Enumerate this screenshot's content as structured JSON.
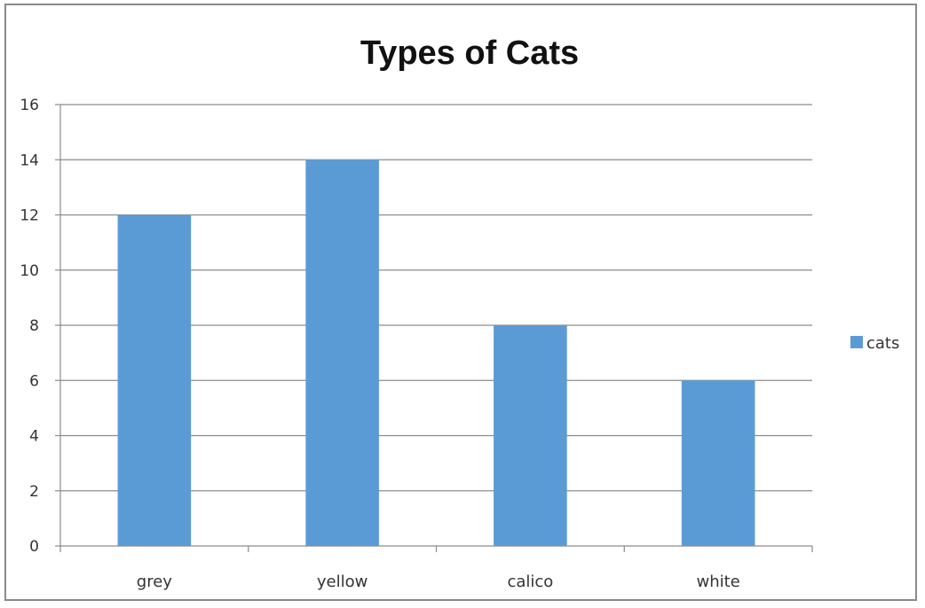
{
  "chart_data": {
    "type": "bar",
    "title": "Types of Cats",
    "xlabel": "",
    "ylabel": "",
    "categories": [
      "grey",
      "yellow",
      "calico",
      "white"
    ],
    "series": [
      {
        "name": "cats",
        "values": [
          12,
          14,
          8,
          6
        ],
        "color": "#5B9BD5"
      }
    ],
    "ylim": [
      0,
      16
    ],
    "yticks": [
      0,
      2,
      4,
      6,
      8,
      10,
      12,
      14,
      16
    ],
    "grid": true,
    "legend": "right"
  }
}
